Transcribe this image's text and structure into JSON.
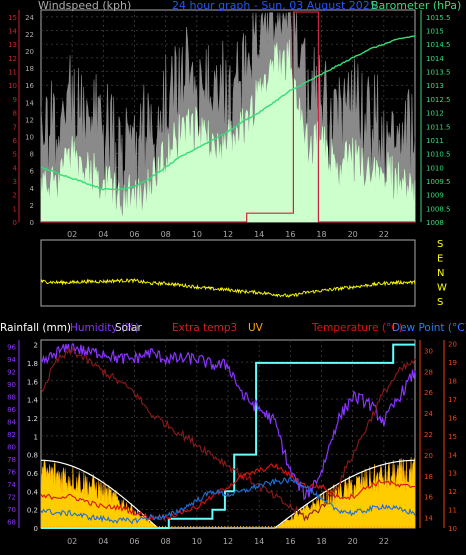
{
  "colors": {
    "background": "#000000",
    "wind_avg": "#ccffcc",
    "wind_gust": "#8a8a8a",
    "barometer": "#33dd77",
    "wind_axis": "#cc2222",
    "frame": "#aaaaaa",
    "direction": "#ffff00",
    "rain": "#ffffff",
    "humidity": "#8833ff",
    "solar": "#ffcc00",
    "solar_max": "#ffffff",
    "extra_temp": "#8b1a1a",
    "uv": "#ffa500",
    "temperature": "#dd1111",
    "dewpoint": "#1f6fd9",
    "rain_line": "#66ffff"
  },
  "top": {
    "title_left": "Windspeed (kph)",
    "title_center": "24 hour graph - Sun, 03 August 2025",
    "title_right": "Barometer (hPa)",
    "y_left_ticks": [
      "0",
      "1",
      "2",
      "3",
      "4",
      "5",
      "6",
      "7",
      "8",
      "9",
      "10",
      "11",
      "12",
      "13",
      "14",
      "15"
    ],
    "y_right_ticks": [
      "1008",
      "1008.5",
      "1009",
      "1009.5",
      "1010",
      "1010.5",
      "1011",
      "1011.5",
      "1012",
      "1012.5",
      "1013",
      "1013.5",
      "1014",
      "1014.5",
      "1015",
      "1015.5"
    ],
    "y_left2_ticks": [
      "0",
      "2",
      "4",
      "6",
      "8",
      "10",
      "12",
      "14",
      "16",
      "18",
      "20",
      "22",
      "24"
    ]
  },
  "direction": {
    "labels": [
      "S",
      "E",
      "N",
      "W",
      "S"
    ]
  },
  "x_ticks": [
    "02",
    "04",
    "06",
    "08",
    "10",
    "12",
    "14",
    "16",
    "18",
    "20",
    "22"
  ],
  "bottom": {
    "label_rainfall": "Rainfall (mm)",
    "label_humidity": "Humidity (%)",
    "label_solar": "Solar",
    "label_extra": "Extra temp3",
    "label_uv": "UV",
    "label_temp": "Temperature (°C)",
    "label_dew": "Dew Point (°C)",
    "y_rain_ticks": [
      "0",
      "0.2",
      "0.4",
      "0.6",
      "0.8",
      "1",
      "1.2",
      "1.4",
      "1.6",
      "1.8",
      "2"
    ],
    "y_hum_ticks": [
      "68",
      "70",
      "72",
      "74",
      "76",
      "78",
      "80",
      "82",
      "84",
      "86",
      "88",
      "90",
      "92",
      "94",
      "96"
    ],
    "y_temp_ticks": [
      "14",
      "16",
      "18",
      "20",
      "22",
      "24",
      "26",
      "28",
      "30"
    ],
    "y_dew_ticks": [
      "10",
      "11",
      "12",
      "13",
      "14",
      "15",
      "16",
      "17",
      "18",
      "19",
      "20"
    ]
  },
  "chart_data": [
    {
      "type": "line",
      "title": "24 hour graph - Sun, 03 August 2025",
      "x_range_hours": [
        0,
        24
      ],
      "series": [
        {
          "name": "Windspeed (kph)",
          "axis": "left",
          "ylim": [
            0,
            15
          ],
          "values_hourly": [
            2,
            2,
            4,
            3,
            2,
            1,
            1,
            2,
            4,
            6,
            6,
            5,
            5,
            6,
            9,
            11,
            11,
            5,
            5,
            3,
            4,
            3,
            3,
            2,
            1
          ]
        },
        {
          "name": "Barometer (hPa)",
          "axis": "right",
          "ylim": [
            1008,
            1015.5
          ],
          "values_hourly": [
            1010,
            1009.8,
            1009.6,
            1009.4,
            1009.2,
            1009.2,
            1009.3,
            1009.6,
            1010,
            1010.4,
            1010.7,
            1011,
            1011.3,
            1011.7,
            1012,
            1012.4,
            1012.8,
            1013.1,
            1013.4,
            1013.7,
            1014,
            1014.3,
            1014.5,
            1014.7,
            1014.8
          ]
        },
        {
          "name": "Wind direction rain",
          "axis": "left2",
          "ylim": [
            0,
            24
          ],
          "values": [
            [
              0,
              0
            ],
            [
              13.2,
              0
            ],
            [
              13.2,
              1
            ],
            [
              16.2,
              1
            ],
            [
              16.2,
              24
            ],
            [
              17.8,
              24
            ],
            [
              17.8,
              0
            ],
            [
              24,
              0
            ]
          ]
        }
      ]
    },
    {
      "type": "line",
      "title": "Wind direction",
      "x_range_hours": [
        0,
        24
      ],
      "series": [
        {
          "name": "Direction",
          "ylim": [
            "S",
            "S"
          ],
          "values_hourly": [
            180,
            175,
            175,
            180,
            180,
            185,
            185,
            170,
            170,
            160,
            150,
            140,
            135,
            125,
            120,
            110,
            100,
            120,
            130,
            140,
            150,
            160,
            170,
            175,
            175
          ]
        }
      ]
    },
    {
      "type": "line",
      "title": "",
      "x_range_hours": [
        0,
        24
      ],
      "series": [
        {
          "name": "Rainfall (mm)",
          "axis": "rain",
          "ylim": [
            0,
            2
          ],
          "values": [
            [
              0,
              0
            ],
            [
              8.2,
              0
            ],
            [
              8.2,
              0.1
            ],
            [
              11,
              0.1
            ],
            [
              11,
              0.2
            ],
            [
              11.8,
              0.2
            ],
            [
              11.8,
              0.4
            ],
            [
              12.4,
              0.4
            ],
            [
              12.4,
              0.8
            ],
            [
              13.8,
              0.8
            ],
            [
              13.8,
              1.8
            ],
            [
              22.6,
              1.8
            ],
            [
              22.6,
              2
            ],
            [
              24,
              2
            ]
          ]
        },
        {
          "name": "Humidity (%)",
          "axis": "humidity",
          "ylim": [
            68,
            96
          ],
          "values_hourly": [
            93,
            95,
            96,
            95,
            95,
            94,
            94,
            95,
            94,
            94,
            94,
            93,
            93,
            88,
            86,
            84,
            76,
            72,
            76,
            84,
            88,
            87,
            84,
            88,
            92
          ]
        },
        {
          "name": "Solar",
          "axis": "solar",
          "values_hourly": [
            0.55,
            0.5,
            0.4,
            0.25,
            0.1,
            0,
            0,
            0,
            0.02,
            0.05,
            0.08,
            0.1,
            0.08,
            0.05,
            0.03,
            0.02,
            0,
            0,
            0,
            0.1,
            0.25,
            0.35,
            0.45,
            0.6,
            0.6
          ]
        },
        {
          "name": "Extra temp3",
          "axis": "temp",
          "ylim": [
            13,
            31
          ],
          "values_hourly": [
            26,
            29,
            30,
            29,
            28,
            27,
            26,
            24,
            23,
            22,
            21,
            20,
            19,
            18,
            17,
            16,
            15,
            14,
            15,
            17,
            20,
            23,
            26,
            28,
            29
          ]
        },
        {
          "name": "Temperature (°C)",
          "axis": "temp",
          "ylim": [
            13,
            31
          ],
          "values_hourly": [
            16,
            16,
            16,
            15.5,
            15,
            15,
            14.5,
            14,
            14,
            14.5,
            15,
            16,
            17,
            18,
            18.5,
            19,
            18,
            17,
            17,
            16,
            16,
            17,
            17.5,
            17,
            17
          ]
        },
        {
          "name": "Dew Point (°C)",
          "axis": "dew",
          "ylim": [
            10,
            20
          ],
          "values_hourly": [
            11,
            10.8,
            10.8,
            10.6,
            10.5,
            10.4,
            10.4,
            10.6,
            10.6,
            11,
            11.5,
            12,
            11.8,
            12,
            12.3,
            12.5,
            12.6,
            12.3,
            11.5,
            11,
            10.8,
            11,
            11.2,
            11,
            10.8
          ]
        }
      ]
    }
  ]
}
